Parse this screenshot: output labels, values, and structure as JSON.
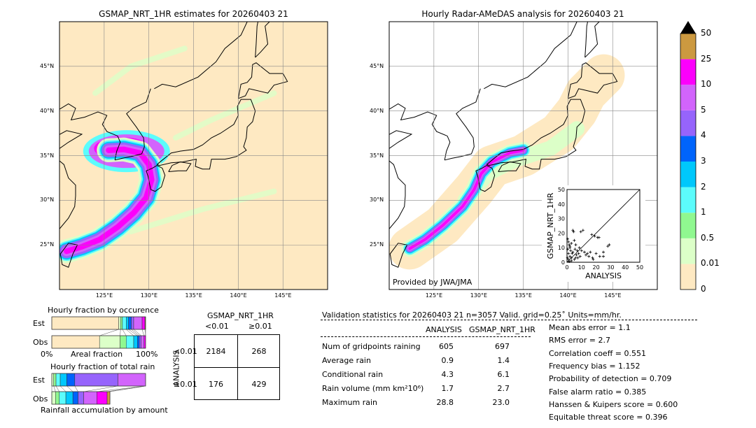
{
  "left_map": {
    "title": "GSMAP_NRT_1HR estimates for 20260403 21"
  },
  "right_map": {
    "title": "Hourly Radar-AMeDAS analysis for 20260403 21",
    "credit": "Provided by JWA/JMA"
  },
  "lon_ticks": [
    "125°E",
    "130°E",
    "135°E",
    "140°E",
    "145°E"
  ],
  "lat_ticks": [
    "45°N",
    "40°N",
    "35°N",
    "30°N",
    "25°N"
  ],
  "colorbar": {
    "labels": [
      "0",
      "0.01",
      "0.5",
      "1",
      "2",
      "3",
      "4",
      "5",
      "10",
      "25",
      "50"
    ],
    "colors": [
      "#fee9c2",
      "#dcffc8",
      "#90f890",
      "#5cfcfc",
      "#00c8fc",
      "#0064fc",
      "#9664fc",
      "#d264fc",
      "#fc00fc",
      "#cc9940"
    ],
    "extend_color": "#000000"
  },
  "chart_data": [
    {
      "type": "scatter",
      "xlabel": "ANALYSIS",
      "ylabel": "GSMAP_NRT_1HR",
      "xlim": [
        0,
        50
      ],
      "ylim": [
        0,
        50
      ],
      "xticks": [
        "0",
        "10",
        "20",
        "30",
        "40",
        "50"
      ],
      "yticks": [
        "0",
        "10",
        "20",
        "30",
        "40",
        "50"
      ],
      "points": [
        [
          0.5,
          16
        ],
        [
          1,
          14
        ],
        [
          1.5,
          12
        ],
        [
          2,
          10
        ],
        [
          2.5,
          8
        ],
        [
          3,
          13
        ],
        [
          3.5,
          6
        ],
        [
          4,
          22
        ],
        [
          4.5,
          21
        ],
        [
          5,
          15
        ],
        [
          5.5,
          9
        ],
        [
          6,
          12
        ],
        [
          6.5,
          5
        ],
        [
          7,
          8
        ],
        [
          7.5,
          3
        ],
        [
          8,
          6
        ],
        [
          8.5,
          10
        ],
        [
          9,
          4
        ],
        [
          9.5,
          21
        ],
        [
          10,
          8
        ],
        [
          11,
          22
        ],
        [
          12,
          7
        ],
        [
          13,
          5
        ],
        [
          14,
          6
        ],
        [
          15,
          4
        ],
        [
          16,
          7
        ],
        [
          17,
          19
        ],
        [
          17.5,
          3
        ],
        [
          18,
          2
        ],
        [
          19,
          18
        ],
        [
          20,
          6
        ],
        [
          21,
          17
        ],
        [
          22,
          17
        ],
        [
          22.5,
          4
        ],
        [
          25,
          4
        ],
        [
          25,
          7
        ],
        [
          28,
          11
        ],
        [
          29,
          12
        ],
        [
          1,
          2
        ],
        [
          2,
          4
        ],
        [
          3,
          1
        ],
        [
          1,
          6
        ],
        [
          0.5,
          9
        ],
        [
          2,
          11
        ],
        [
          3,
          3
        ],
        [
          4,
          7
        ],
        [
          5,
          2
        ],
        [
          6,
          3
        ],
        [
          1.5,
          0.5
        ],
        [
          0.3,
          3
        ]
      ]
    },
    {
      "type": "bar",
      "title": "Hourly fraction by occurence",
      "xlabel": "Areal fraction",
      "x_ticks": [
        "0%",
        "100%"
      ],
      "rows": [
        {
          "name": "Est",
          "fractions": [
            0.713,
            0.02,
            0.02,
            0.04,
            0.025,
            0.03,
            0.025,
            0.09,
            0.03,
            0.007
          ]
        },
        {
          "name": "Obs",
          "fractions": [
            0.509,
            0.219,
            0.065,
            0.08,
            0.04,
            0.02,
            0.02,
            0.03,
            0.017,
            0
          ]
        }
      ]
    },
    {
      "type": "bar",
      "title": "Hourly fraction of total rain",
      "xlabel": "Rainfall accumulation by amount",
      "rows": [
        {
          "name": "Est",
          "fractions": [
            0,
            0.02,
            0.025,
            0.045,
            0.07,
            0.085,
            0.46,
            0.295,
            0,
            0
          ]
        },
        {
          "name": "Obs",
          "fractions": [
            0,
            0.04,
            0.04,
            0.07,
            0.075,
            0.055,
            0.06,
            0.14,
            0.11,
            0.03
          ]
        }
      ]
    },
    {
      "type": "table",
      "title": "GSMAP_NRT_1HR",
      "col_labels": [
        "<0.01",
        "≥0.01"
      ],
      "row_title": "ANALYSIS",
      "row_labels": [
        "<0.01",
        "≥0.01"
      ],
      "cells": [
        [
          "2184",
          "268"
        ],
        [
          "176",
          "429"
        ]
      ]
    }
  ],
  "stats": {
    "header": "Validation statistics for 20260403 21  n=3057 Valid. grid=0.25˚ Units=mm/hr.",
    "col_analysis": "ANALYSIS",
    "col_gsmap": "GSMAP_NRT_1HR",
    "rows": [
      {
        "label": "Num of gridpoints raining",
        "a": "605",
        "g": "697"
      },
      {
        "label": "Average rain",
        "a": "0.9",
        "g": "1.4"
      },
      {
        "label": "Conditional rain",
        "a": "4.3",
        "g": "6.1"
      },
      {
        "label": "Rain volume (mm km²10⁶)",
        "a": "1.7",
        "g": "2.7"
      },
      {
        "label": "Maximum rain",
        "a": "28.8",
        "g": "23.0"
      }
    ],
    "scores": [
      "Mean abs error =    1.1",
      "RMS error =    2.7",
      "Correlation coeff =  0.551",
      "Frequency bias =  1.152",
      "Probability of detection =  0.709",
      "False alarm ratio =  0.385",
      "Hanssen & Kuipers score =  0.600",
      "Equitable threat score =  0.396"
    ]
  }
}
